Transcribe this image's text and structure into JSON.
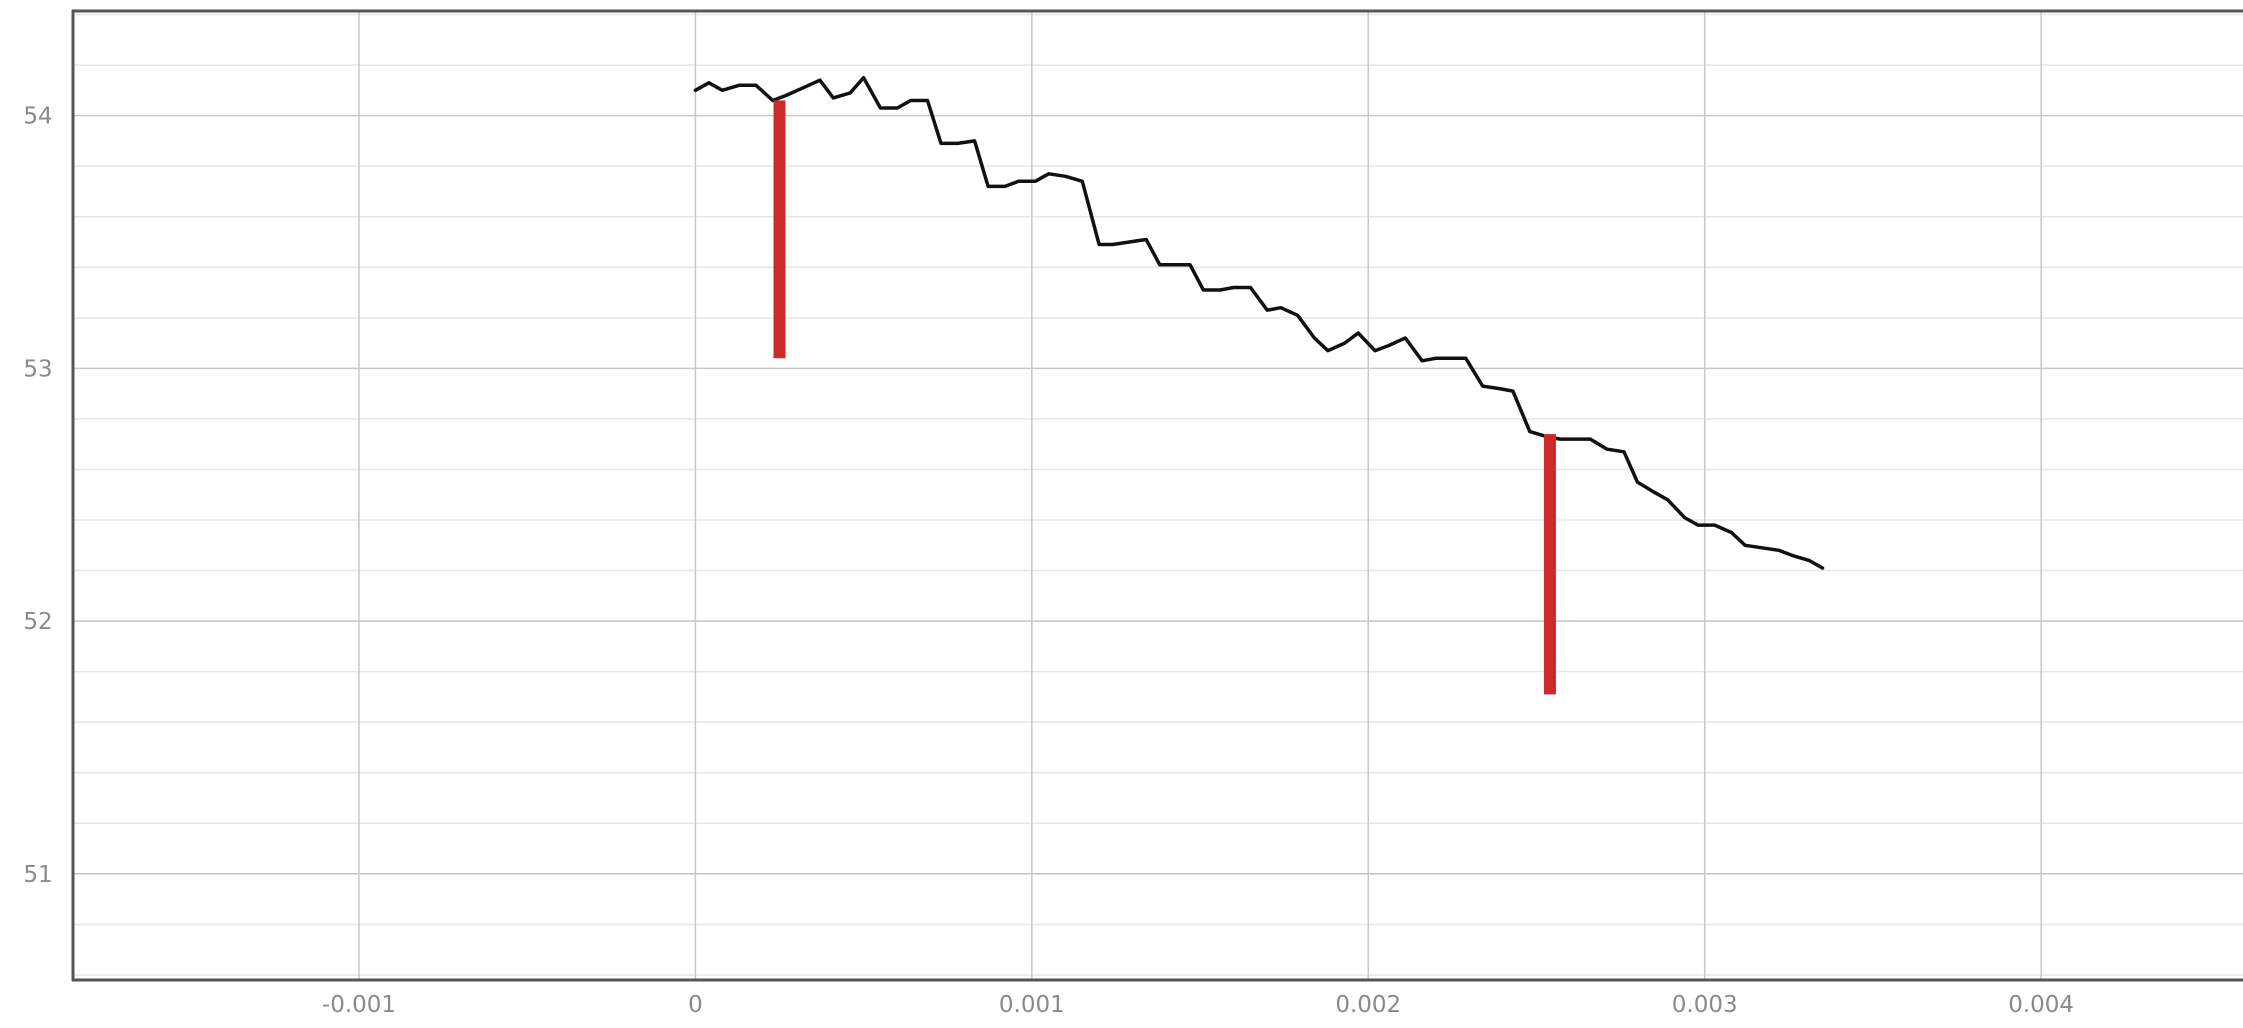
{
  "chart_data": {
    "type": "line",
    "title": "",
    "xlabel": "",
    "ylabel": "",
    "xlim": [
      -0.00185,
      0.0046
    ],
    "ylim": [
      50.58,
      54.41
    ],
    "x_ticks": [
      -0.001,
      0,
      0.001,
      0.002,
      0.003,
      0.004
    ],
    "x_tick_labels": [
      "-0.001",
      "0",
      "0.001",
      "0.002",
      "0.003",
      "0.004"
    ],
    "y_ticks": [
      51,
      52,
      53,
      54
    ],
    "y_tick_labels": [
      "51",
      "52",
      "53",
      "54"
    ],
    "y_minor_step": 0.2,
    "grid": true,
    "legend": "none",
    "colors": {
      "line": "#111111",
      "marker": "#cc2a2a",
      "grid_major": "#c8c8c8",
      "grid_minor": "#e6e6e6",
      "axis": "#555555",
      "tick_label": "#8a8a8a"
    },
    "series": [
      {
        "x": [
          0,
          4e-05,
          8e-05,
          0.00013,
          0.00018,
          0.00023,
          0.00027,
          0.00032,
          0.00037,
          0.00041,
          0.00046,
          0.0005,
          0.00055,
          0.0006,
          0.00064,
          0.00069,
          0.00073,
          0.00078,
          0.00083,
          0.00087,
          0.00092,
          0.00096,
          0.00101,
          0.00105,
          0.0011,
          0.00115,
          0.0012,
          0.00124,
          0.00129,
          0.00134,
          0.00138,
          0.00142,
          0.00147,
          0.00151,
          0.00156,
          0.0016,
          0.00165,
          0.0017,
          0.00174,
          0.00179,
          0.00184,
          0.00188,
          0.00193,
          0.00197,
          0.00202,
          0.00206,
          0.00211,
          0.00216,
          0.0022,
          0.00225,
          0.00229,
          0.00234,
          0.00239,
          0.00243,
          0.00248,
          0.00253,
          0.00257,
          0.00262,
          0.00266,
          0.00271,
          0.00276,
          0.0028,
          0.00285,
          0.00289,
          0.00294,
          0.00298,
          0.00303,
          0.00308,
          0.00312,
          0.00317,
          0.00322,
          0.00326,
          0.00331,
          0.00335
        ],
        "values": [
          54.1,
          54.13,
          54.1,
          54.12,
          54.12,
          54.06,
          54.08,
          54.11,
          54.14,
          54.07,
          54.09,
          54.15,
          54.03,
          54.03,
          54.06,
          54.06,
          53.89,
          53.89,
          53.9,
          53.72,
          53.72,
          53.74,
          53.74,
          53.77,
          53.76,
          53.74,
          53.49,
          53.49,
          53.5,
          53.51,
          53.41,
          53.41,
          53.41,
          53.31,
          53.31,
          53.32,
          53.32,
          53.23,
          53.24,
          53.21,
          53.12,
          53.07,
          53.1,
          53.14,
          53.07,
          53.09,
          53.12,
          53.03,
          53.04,
          53.04,
          53.04,
          52.93,
          52.92,
          52.91,
          52.75,
          52.73,
          52.72,
          52.72,
          52.72,
          52.68,
          52.67,
          52.55,
          52.51,
          52.48,
          52.41,
          52.38,
          52.38,
          52.35,
          52.3,
          52.29,
          52.28,
          52.26,
          52.24,
          52.21
        ]
      }
    ],
    "markers": [
      {
        "x": 0.00025,
        "y_top": 54.06,
        "y_bottom": 53.04
      },
      {
        "x": 0.00254,
        "y_top": 52.74,
        "y_bottom": 51.71
      }
    ]
  }
}
